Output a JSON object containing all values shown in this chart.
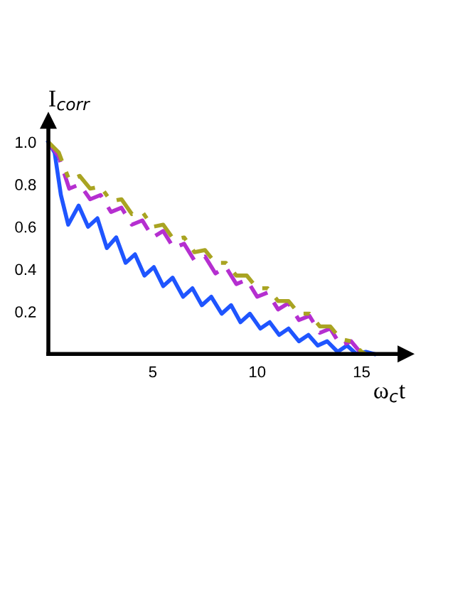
{
  "chart_data": {
    "type": "line",
    "xlabel": "ω$_{c}$t",
    "ylabel": "I$_{corr}$",
    "xlim": [
      0,
      17.1
    ],
    "ylim": [
      0,
      1.1
    ],
    "xticks": [
      5,
      10,
      15
    ],
    "yticks": [
      0.2,
      0.4,
      0.6,
      0.8,
      {
        "value": 1.0,
        "label": "1.0"
      }
    ],
    "grid": false,
    "legend": false,
    "marker": "none",
    "series": [
      {
        "color": "#1f55ff",
        "line_style": "solid",
        "x": [
          0,
          0.3,
          0.6,
          0.95,
          1.45,
          1.9,
          2.35,
          2.8,
          3.25,
          3.7,
          4.15,
          4.6,
          5.05,
          5.5,
          5.95,
          6.45,
          6.9,
          7.35,
          7.8,
          8.3,
          8.75,
          9.2,
          9.65,
          10.15,
          10.6,
          11.05,
          11.5,
          12.0,
          12.45,
          12.9,
          13.35,
          13.85,
          14.3,
          14.75,
          15.2,
          15.6
        ],
        "values": [
          1.0,
          0.95,
          0.75,
          0.61,
          0.7,
          0.6,
          0.64,
          0.5,
          0.55,
          0.43,
          0.47,
          0.37,
          0.41,
          0.32,
          0.36,
          0.27,
          0.31,
          0.23,
          0.27,
          0.19,
          0.23,
          0.15,
          0.19,
          0.12,
          0.15,
          0.09,
          0.12,
          0.06,
          0.09,
          0.04,
          0.06,
          0.01,
          0.04,
          0.0,
          0.01,
          0.0
        ]
      },
      {
        "color": "#b52fd0",
        "line_style": "dashed",
        "x": [
          0,
          0.5,
          1.0,
          1.5,
          2.0,
          2.5,
          3.0,
          3.5,
          4.0,
          4.5,
          5.0,
          5.5,
          6.0,
          6.5,
          7.0,
          7.5,
          8.0,
          8.5,
          9.0,
          9.5,
          10.0,
          10.5,
          11.0,
          11.5,
          12.0,
          12.5,
          13.0,
          13.5,
          14.0,
          14.5,
          15.0
        ],
        "values": [
          1.0,
          0.93,
          0.78,
          0.8,
          0.73,
          0.75,
          0.67,
          0.69,
          0.61,
          0.63,
          0.55,
          0.58,
          0.5,
          0.52,
          0.44,
          0.46,
          0.38,
          0.41,
          0.33,
          0.35,
          0.27,
          0.29,
          0.21,
          0.24,
          0.16,
          0.18,
          0.1,
          0.12,
          0.04,
          0.06,
          0.0
        ]
      },
      {
        "color": "#a9a422",
        "line_style": "dashdot",
        "x": [
          0,
          0.5,
          1.0,
          1.5,
          2.0,
          2.5,
          3.0,
          3.5,
          4.0,
          4.5,
          5.0,
          5.5,
          6.0,
          6.5,
          7.0,
          7.5,
          8.0,
          8.5,
          9.0,
          9.5,
          10.0,
          10.5,
          11.0,
          11.5,
          12.0,
          12.5,
          13.0,
          13.5,
          14.0,
          14.5,
          15.0,
          15.2
        ],
        "values": [
          1.0,
          0.95,
          0.82,
          0.84,
          0.78,
          0.79,
          0.72,
          0.73,
          0.66,
          0.67,
          0.6,
          0.61,
          0.54,
          0.55,
          0.48,
          0.49,
          0.43,
          0.43,
          0.37,
          0.37,
          0.31,
          0.31,
          0.25,
          0.25,
          0.19,
          0.19,
          0.13,
          0.13,
          0.07,
          0.06,
          0.01,
          0.0
        ]
      }
    ]
  }
}
